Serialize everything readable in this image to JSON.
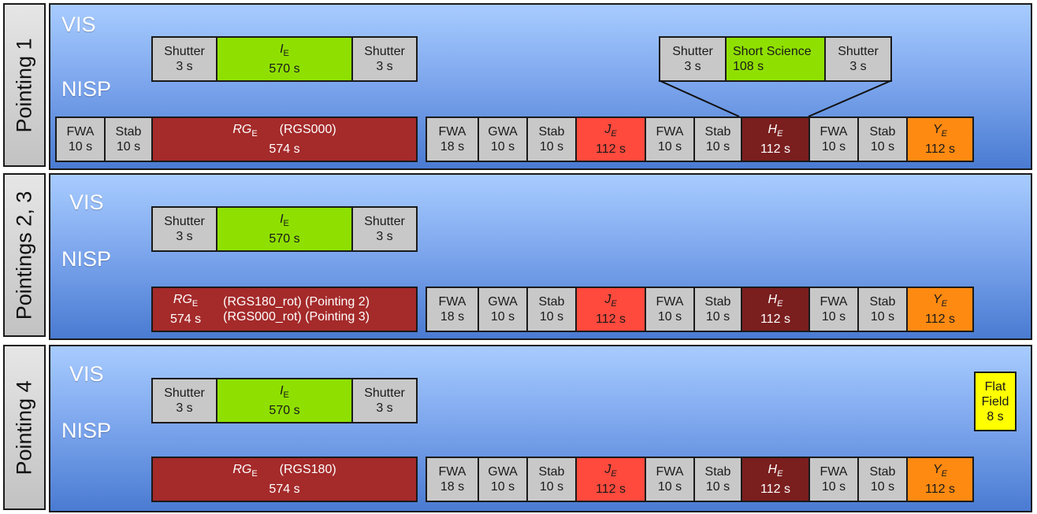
{
  "colors": {
    "panel_top": "#a8ccff",
    "panel_bottom": "#4a7bd2",
    "vis_science": "#8fe000",
    "nisp_rg": "#a52a2a",
    "j_band": "#ff4a3d",
    "h_band": "#7a1e1e",
    "y_band": "#ff8a12",
    "flat_field": "#ffff00",
    "overhead": "#c8c8c8"
  },
  "labels": {
    "vis": "VIS",
    "nisp": "NISP"
  },
  "pointings": [
    {
      "tab": "Pointing 1",
      "vis": {
        "shutter1": {
          "name": "Shutter",
          "time": "3 s"
        },
        "science": {
          "sym": "I",
          "sub": "E",
          "time": "570 s"
        },
        "shutter2": {
          "name": "Shutter",
          "time": "3 s"
        }
      },
      "nisp_lead": [
        {
          "name": "FWA",
          "time": "10 s"
        },
        {
          "name": "Stab",
          "time": "10 s"
        }
      ],
      "rg": {
        "sym": "RG",
        "sub": "E",
        "note": "(RGS000)",
        "time": "574 s"
      },
      "seq": [
        {
          "name": "FWA",
          "time": "18 s"
        },
        {
          "name": "GWA",
          "time": "10 s"
        },
        {
          "name": "Stab",
          "time": "10 s"
        },
        {
          "sym": "J",
          "sub": "E",
          "time": "112 s"
        },
        {
          "name": "FWA",
          "time": "10 s"
        },
        {
          "name": "Stab",
          "time": "10 s"
        },
        {
          "sym": "H",
          "sub": "E",
          "time": "112 s"
        },
        {
          "name": "FWA",
          "time": "10 s"
        },
        {
          "name": "Stab",
          "time": "10 s"
        },
        {
          "sym": "Y",
          "sub": "E",
          "time": "112 s"
        }
      ],
      "callout": {
        "shutter1": {
          "name": "Shutter",
          "time": "3 s"
        },
        "short": {
          "name": "Short Science",
          "time": "108 s"
        },
        "shutter2": {
          "name": "Shutter",
          "time": "3 s"
        }
      }
    },
    {
      "tab": "Pointings 2, 3",
      "vis": {
        "shutter1": {
          "name": "Shutter",
          "time": "3 s"
        },
        "science": {
          "sym": "I",
          "sub": "E",
          "time": "570 s"
        },
        "shutter2": {
          "name": "Shutter",
          "time": "3 s"
        }
      },
      "rg": {
        "sym": "RG",
        "sub": "E",
        "time": "574 s",
        "note1": "(RGS180_rot) (Pointing 2)",
        "note2": "(RGS000_rot) (Pointing 3)"
      },
      "seq": [
        {
          "name": "FWA",
          "time": "18 s"
        },
        {
          "name": "GWA",
          "time": "10 s"
        },
        {
          "name": "Stab",
          "time": "10 s"
        },
        {
          "sym": "J",
          "sub": "E",
          "time": "112 s"
        },
        {
          "name": "FWA",
          "time": "10 s"
        },
        {
          "name": "Stab",
          "time": "10 s"
        },
        {
          "sym": "H",
          "sub": "E",
          "time": "112 s"
        },
        {
          "name": "FWA",
          "time": "10 s"
        },
        {
          "name": "Stab",
          "time": "10 s"
        },
        {
          "sym": "Y",
          "sub": "E",
          "time": "112 s"
        }
      ]
    },
    {
      "tab": "Pointing 4",
      "vis": {
        "shutter1": {
          "name": "Shutter",
          "time": "3 s"
        },
        "science": {
          "sym": "I",
          "sub": "E",
          "time": "570 s"
        },
        "shutter2": {
          "name": "Shutter",
          "time": "3 s"
        }
      },
      "rg": {
        "sym": "RG",
        "sub": "E",
        "note": "(RGS180)",
        "time": "574 s"
      },
      "seq": [
        {
          "name": "FWA",
          "time": "18 s"
        },
        {
          "name": "GWA",
          "time": "10 s"
        },
        {
          "name": "Stab",
          "time": "10 s"
        },
        {
          "sym": "J",
          "sub": "E",
          "time": "112 s"
        },
        {
          "name": "FWA",
          "time": "10 s"
        },
        {
          "name": "Stab",
          "time": "10 s"
        },
        {
          "sym": "H",
          "sub": "E",
          "time": "112 s"
        },
        {
          "name": "FWA",
          "time": "10 s"
        },
        {
          "name": "Stab",
          "time": "10 s"
        },
        {
          "sym": "Y",
          "sub": "E",
          "time": "112 s"
        }
      ],
      "flat": {
        "line1": "Flat",
        "line2": "Field",
        "time": "8 s"
      }
    }
  ]
}
